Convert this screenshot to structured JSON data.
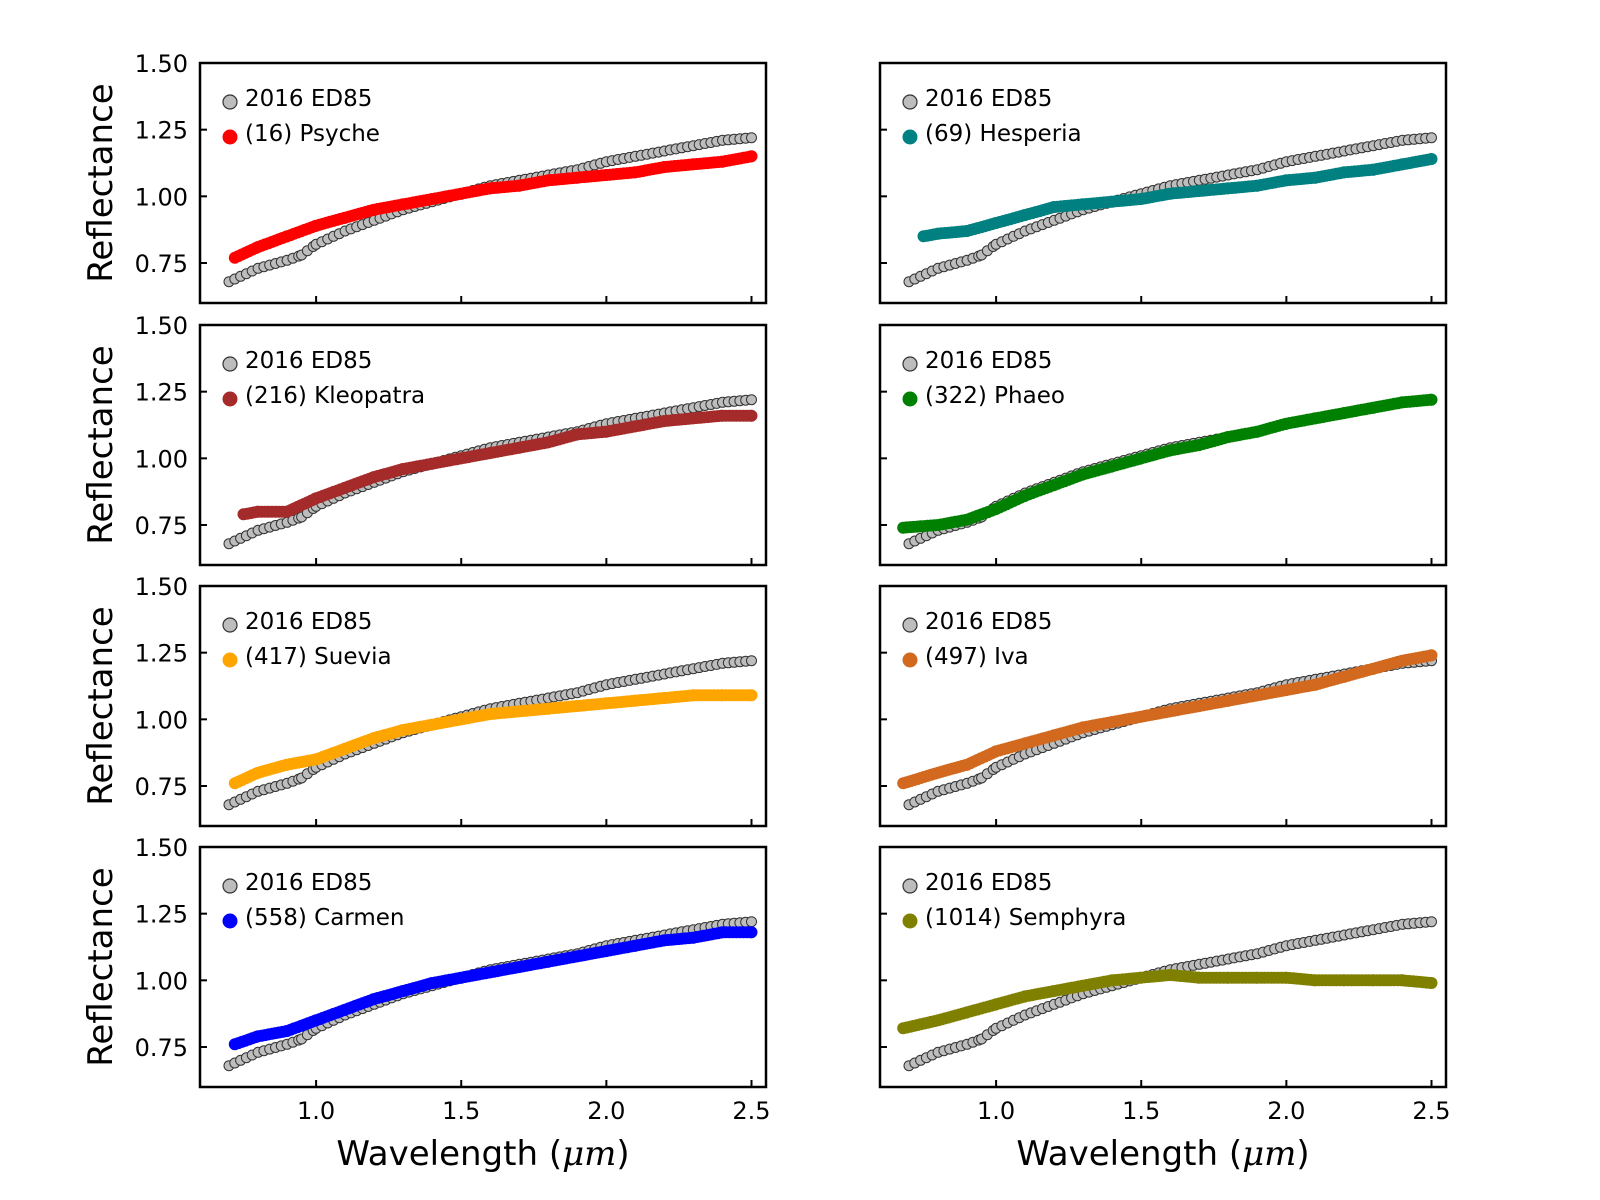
{
  "reference_label": "2016 ED85",
  "colors": {
    "reference_fill": "#bdbdbd",
    "reference_edge": "#333333"
  },
  "chart_data": {
    "type": "scatter",
    "xlabel": "Wavelength (μm)",
    "xlabel_main": "Wavelength (",
    "xlabel_unit": "μm",
    "xlabel_close": ")",
    "ylabel": "Reflectance",
    "xlim": [
      0.6,
      2.55
    ],
    "ylim": [
      0.6,
      1.5
    ],
    "xticks": [
      "1.0",
      "1.5",
      "2.0",
      "2.5"
    ],
    "yticks": [
      "0.75",
      "1.00",
      "1.25",
      "1.50"
    ],
    "reference_series": {
      "name": "2016 ED85",
      "x": [
        0.7,
        0.8,
        0.9,
        0.95,
        1.0,
        1.1,
        1.2,
        1.3,
        1.4,
        1.5,
        1.6,
        1.7,
        1.8,
        1.9,
        2.0,
        2.1,
        2.2,
        2.3,
        2.4,
        2.5
      ],
      "y": [
        0.68,
        0.73,
        0.76,
        0.78,
        0.82,
        0.87,
        0.91,
        0.95,
        0.98,
        1.01,
        1.04,
        1.06,
        1.08,
        1.1,
        1.13,
        1.15,
        1.17,
        1.19,
        1.21,
        1.22
      ]
    },
    "panels": [
      {
        "label": "(16) Psyche",
        "color": "#ff0000",
        "x": [
          0.72,
          0.8,
          0.9,
          1.0,
          1.1,
          1.2,
          1.3,
          1.4,
          1.5,
          1.6,
          1.7,
          1.8,
          1.9,
          2.0,
          2.1,
          2.2,
          2.3,
          2.4,
          2.5
        ],
        "y": [
          0.77,
          0.81,
          0.85,
          0.89,
          0.92,
          0.95,
          0.97,
          0.99,
          1.01,
          1.03,
          1.04,
          1.06,
          1.07,
          1.08,
          1.09,
          1.11,
          1.12,
          1.13,
          1.15
        ]
      },
      {
        "label": "(69) Hesperia",
        "color": "#008080",
        "x": [
          0.75,
          0.8,
          0.9,
          1.0,
          1.1,
          1.2,
          1.3,
          1.4,
          1.5,
          1.6,
          1.7,
          1.8,
          1.9,
          2.0,
          2.1,
          2.2,
          2.3,
          2.4,
          2.5
        ],
        "y": [
          0.85,
          0.86,
          0.87,
          0.9,
          0.93,
          0.96,
          0.97,
          0.98,
          0.99,
          1.01,
          1.02,
          1.03,
          1.04,
          1.06,
          1.07,
          1.09,
          1.1,
          1.12,
          1.14
        ]
      },
      {
        "label": "(216) Kleopatra",
        "color": "#a52a2a",
        "x": [
          0.75,
          0.8,
          0.9,
          1.0,
          1.1,
          1.2,
          1.3,
          1.4,
          1.5,
          1.6,
          1.7,
          1.8,
          1.9,
          2.0,
          2.1,
          2.2,
          2.3,
          2.4,
          2.5
        ],
        "y": [
          0.79,
          0.8,
          0.8,
          0.85,
          0.89,
          0.93,
          0.96,
          0.98,
          1.0,
          1.02,
          1.04,
          1.06,
          1.09,
          1.1,
          1.12,
          1.14,
          1.15,
          1.16,
          1.16
        ]
      },
      {
        "label": "(322) Phaeo",
        "color": "#008000",
        "x": [
          0.68,
          0.8,
          0.9,
          1.0,
          1.1,
          1.2,
          1.3,
          1.4,
          1.5,
          1.6,
          1.7,
          1.8,
          1.9,
          2.0,
          2.1,
          2.2,
          2.3,
          2.4,
          2.5
        ],
        "y": [
          0.74,
          0.75,
          0.77,
          0.81,
          0.86,
          0.9,
          0.94,
          0.97,
          1.0,
          1.03,
          1.05,
          1.08,
          1.1,
          1.13,
          1.15,
          1.17,
          1.19,
          1.21,
          1.22
        ]
      },
      {
        "label": "(417) Suevia",
        "color": "#ffa500",
        "x": [
          0.72,
          0.8,
          0.9,
          1.0,
          1.1,
          1.2,
          1.3,
          1.4,
          1.5,
          1.6,
          1.7,
          1.8,
          1.9,
          2.0,
          2.1,
          2.2,
          2.3,
          2.4,
          2.5
        ],
        "y": [
          0.76,
          0.8,
          0.83,
          0.85,
          0.89,
          0.93,
          0.96,
          0.98,
          1.0,
          1.02,
          1.03,
          1.04,
          1.05,
          1.06,
          1.07,
          1.08,
          1.09,
          1.09,
          1.09
        ]
      },
      {
        "label": "(497) Iva",
        "color": "#d2691e",
        "x": [
          0.68,
          0.8,
          0.9,
          1.0,
          1.1,
          1.2,
          1.3,
          1.4,
          1.5,
          1.6,
          1.7,
          1.8,
          1.9,
          2.0,
          2.1,
          2.2,
          2.3,
          2.4,
          2.5
        ],
        "y": [
          0.76,
          0.8,
          0.83,
          0.88,
          0.91,
          0.94,
          0.97,
          0.99,
          1.01,
          1.03,
          1.05,
          1.07,
          1.09,
          1.11,
          1.13,
          1.16,
          1.19,
          1.22,
          1.24
        ]
      },
      {
        "label": "(558) Carmen",
        "color": "#0000ff",
        "x": [
          0.72,
          0.8,
          0.9,
          1.0,
          1.1,
          1.2,
          1.3,
          1.4,
          1.5,
          1.6,
          1.7,
          1.8,
          1.9,
          2.0,
          2.1,
          2.2,
          2.3,
          2.4,
          2.5
        ],
        "y": [
          0.76,
          0.79,
          0.81,
          0.85,
          0.89,
          0.93,
          0.96,
          0.99,
          1.01,
          1.03,
          1.05,
          1.07,
          1.09,
          1.11,
          1.13,
          1.15,
          1.16,
          1.18,
          1.18
        ]
      },
      {
        "label": "(1014) Semphyra",
        "color": "#808000",
        "x": [
          0.68,
          0.8,
          0.9,
          1.0,
          1.1,
          1.2,
          1.3,
          1.4,
          1.5,
          1.6,
          1.7,
          1.8,
          1.9,
          2.0,
          2.1,
          2.2,
          2.3,
          2.4,
          2.5
        ],
        "y": [
          0.82,
          0.85,
          0.88,
          0.91,
          0.94,
          0.96,
          0.98,
          1.0,
          1.01,
          1.02,
          1.01,
          1.01,
          1.01,
          1.01,
          1.0,
          1.0,
          1.0,
          1.0,
          0.99
        ]
      }
    ]
  }
}
